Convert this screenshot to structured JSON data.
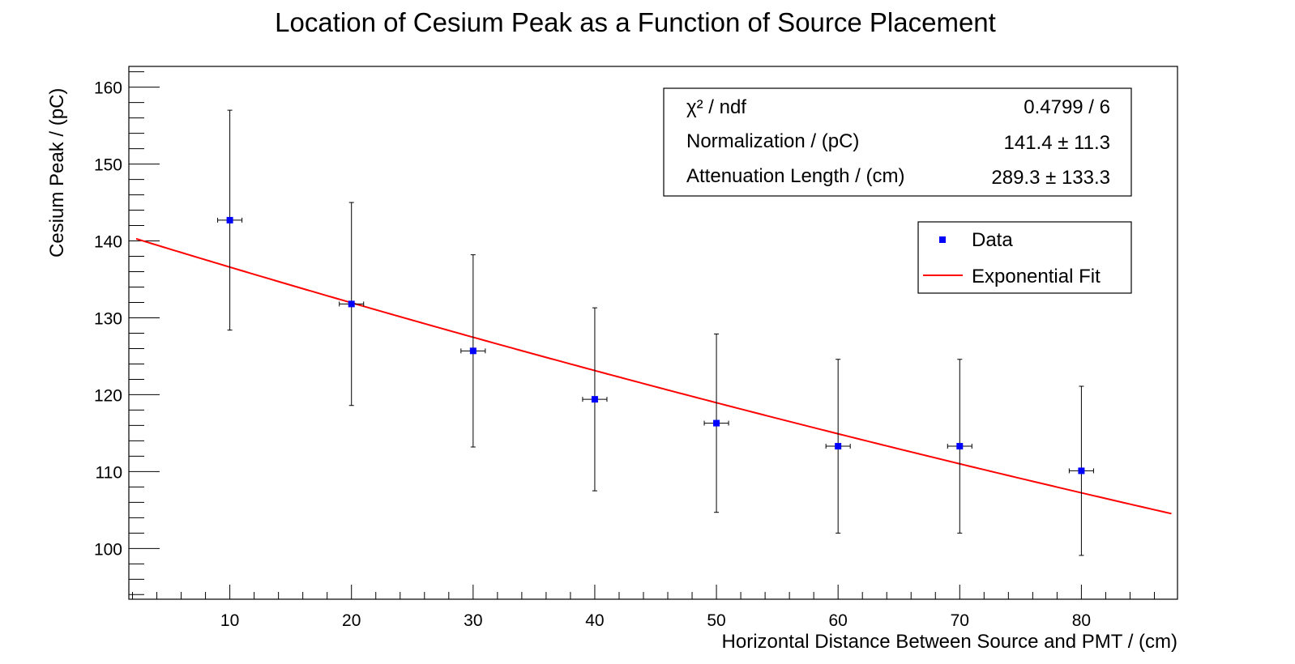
{
  "chart_data": {
    "type": "scatter",
    "title": "Location of Cesium Peak as a Function of Source Placement",
    "xlabel": "Horizontal Distance Between Source and PMT / (cm)",
    "ylabel": "Cesium Peak / (pC)",
    "xlim": [
      1.7,
      87.9
    ],
    "ylim": [
      93.4,
      162.7
    ],
    "xticks": [
      "10",
      "20",
      "30",
      "40",
      "50",
      "60",
      "70",
      "80"
    ],
    "yticks": [
      "100",
      "110",
      "120",
      "130",
      "140",
      "150",
      "160"
    ],
    "grid": false,
    "series": [
      {
        "name": "Data",
        "color": "#0000ff",
        "x": [
          10,
          20,
          30,
          40,
          50,
          60,
          70,
          80
        ],
        "y": [
          142.7,
          131.8,
          125.7,
          119.4,
          116.3,
          113.3,
          113.3,
          110.1
        ],
        "y_err": [
          14.3,
          13.2,
          12.5,
          11.9,
          11.6,
          11.3,
          11.3,
          11.0
        ],
        "x_err": [
          1,
          1,
          1,
          1,
          1,
          1,
          1,
          1
        ]
      },
      {
        "name": "Exponential Fit",
        "color": "#ff0000",
        "fit": {
          "normalization": 141.4,
          "attenuation_length": 289.3,
          "x_range": [
            2.3,
            87.4
          ]
        }
      }
    ],
    "fit_stats": {
      "rows": [
        {
          "label": "χ² / ndf",
          "value": "0.4799 / 6"
        },
        {
          "label": "Normalization / (pC)",
          "value": "141.4 ±  11.3"
        },
        {
          "label": "Attenuation Length / (cm)",
          "value": "289.3 ± 133.3"
        }
      ]
    },
    "legend": {
      "placement": "top-right",
      "entries": [
        "Data",
        "Exponential Fit"
      ]
    }
  }
}
